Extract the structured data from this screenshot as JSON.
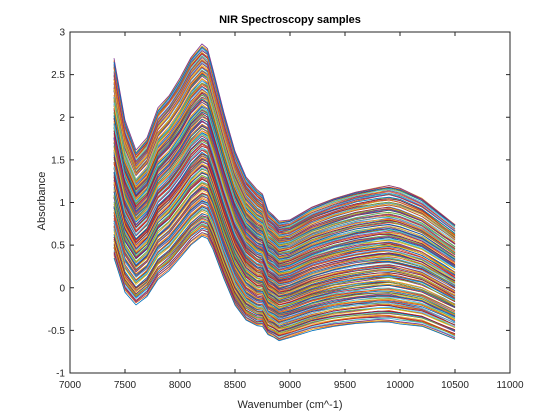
{
  "chart_data": {
    "type": "line",
    "title": "NIR Spectroscopy samples",
    "xlabel": "Wavenumber (cm^-1)",
    "ylabel": "Absorbance",
    "xlim": [
      7000,
      11000
    ],
    "ylim": [
      -1,
      3
    ],
    "xticks": [
      7000,
      7500,
      8000,
      8500,
      9000,
      9500,
      10000,
      10500,
      11000
    ],
    "yticks": [
      -1,
      -0.5,
      0,
      0.5,
      1,
      1.5,
      2,
      2.5,
      3
    ],
    "xtick_labels": [
      "7000",
      "7500",
      "8000",
      "8500",
      "9000",
      "9500",
      "10000",
      "10500",
      "11000"
    ],
    "ytick_labels": [
      "-1",
      "-0.5",
      "0",
      "0.5",
      "1",
      "1.5",
      "2",
      "2.5",
      "3"
    ],
    "grid": false,
    "legend": "none",
    "series_count": 200,
    "x": [
      7400,
      7500,
      7600,
      7700,
      7800,
      7900,
      8000,
      8100,
      8200,
      8250,
      8300,
      8400,
      8500,
      8600,
      8700,
      8750,
      8800,
      8850,
      8900,
      9000,
      9200,
      9400,
      9600,
      9800,
      9900,
      10000,
      10200,
      10400,
      10500
    ],
    "envelope": {
      "upper": [
        2.68,
        1.95,
        1.6,
        1.75,
        2.1,
        2.25,
        2.45,
        2.7,
        2.85,
        2.8,
        2.55,
        2.05,
        1.6,
        1.3,
        1.15,
        1.1,
        0.9,
        0.85,
        0.78,
        0.8,
        0.95,
        1.05,
        1.13,
        1.18,
        1.2,
        1.17,
        1.05,
        0.85,
        0.75
      ],
      "lower": [
        0.35,
        -0.05,
        -0.2,
        -0.1,
        0.1,
        0.2,
        0.35,
        0.5,
        0.6,
        0.58,
        0.45,
        0.1,
        -0.2,
        -0.38,
        -0.45,
        -0.45,
        -0.55,
        -0.58,
        -0.62,
        -0.58,
        -0.5,
        -0.45,
        -0.42,
        -0.4,
        -0.4,
        -0.42,
        -0.45,
        -0.55,
        -0.6
      ]
    },
    "colors": [
      "#0072BD",
      "#D95319",
      "#EDB120",
      "#7E2F8E",
      "#77AC30",
      "#4DBEEE",
      "#A2142F"
    ]
  }
}
